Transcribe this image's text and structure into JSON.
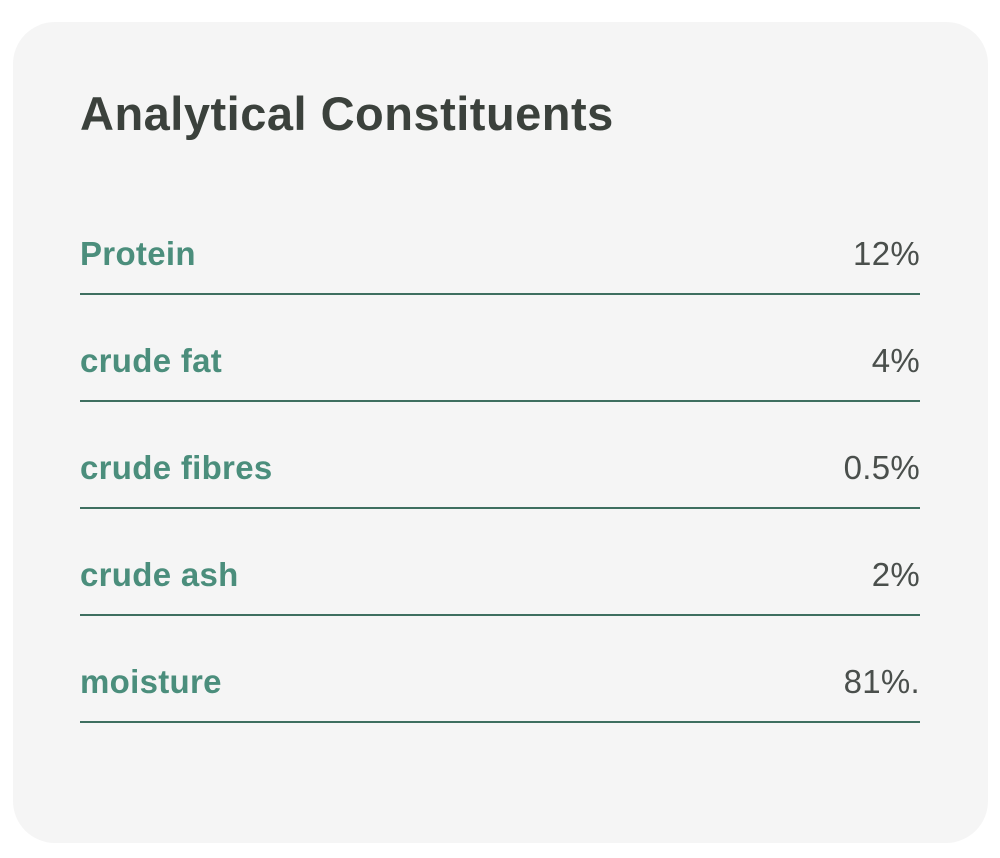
{
  "card": {
    "title": "Analytical Constituents",
    "rows": [
      {
        "label": "Protein",
        "value": "12%"
      },
      {
        "label": "crude fat",
        "value": "4%"
      },
      {
        "label": "crude fibres",
        "value": "0.5%"
      },
      {
        "label": "crude ash",
        "value": "2%"
      },
      {
        "label": "moisture",
        "value": "81%."
      }
    ],
    "colors": {
      "page_bg": "#ffffff",
      "card_bg": "#f5f5f5",
      "title": "#3b413c",
      "label": "#4b8e7c",
      "value": "#4a4f4c",
      "divider": "#3e6f60"
    }
  }
}
